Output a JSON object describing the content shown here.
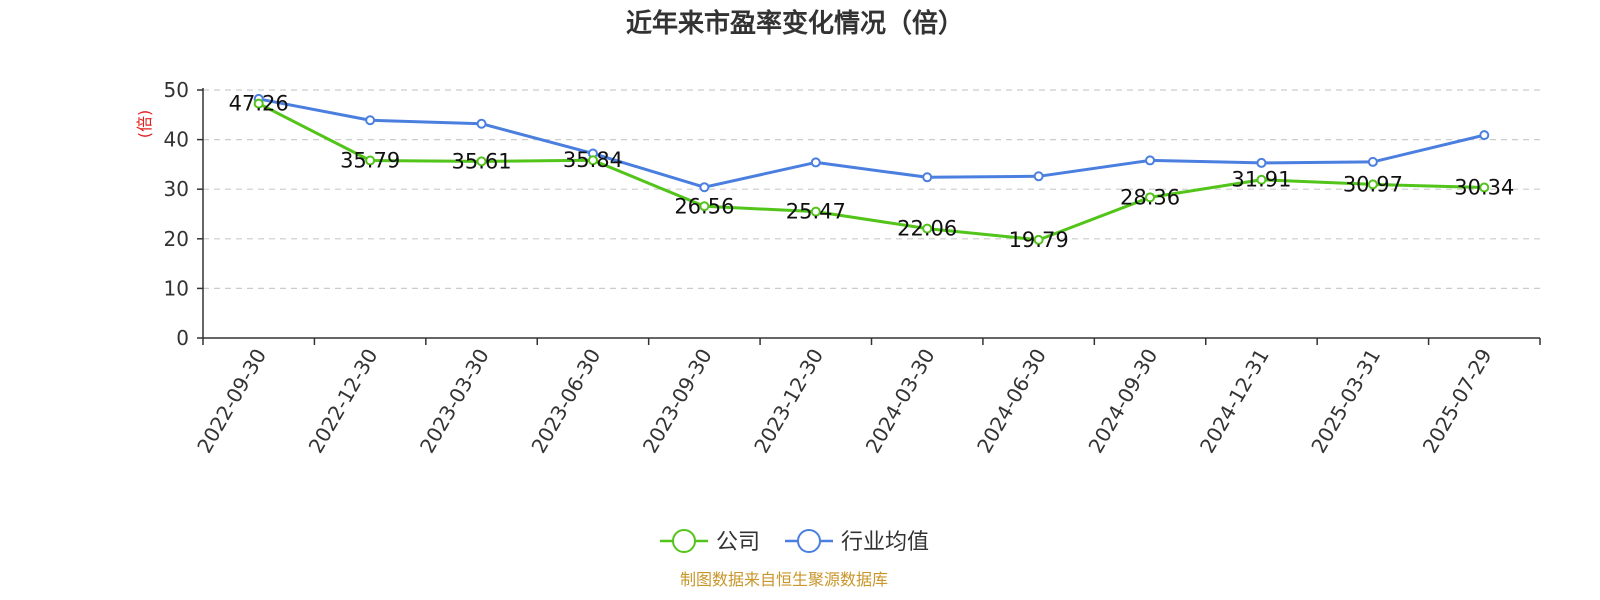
{
  "chart_data": {
    "type": "line",
    "title": "近年来市盈率变化情况（倍）",
    "ylabel": "(倍)",
    "ylim": [
      0,
      50
    ],
    "yticks": [
      0,
      10,
      20,
      30,
      40,
      50
    ],
    "grid": true,
    "legend_position": "bottom-center",
    "categories": [
      "2022-09-30",
      "2022-12-30",
      "2023-03-30",
      "2023-06-30",
      "2023-09-30",
      "2023-12-30",
      "2024-03-30",
      "2024-06-30",
      "2024-09-30",
      "2024-12-31",
      "2025-03-31",
      "2025-07-29"
    ],
    "series": [
      {
        "name": "公司",
        "color": "#52c41a",
        "values": [
          47.26,
          35.79,
          35.61,
          35.84,
          26.56,
          25.47,
          22.06,
          19.79,
          28.36,
          31.91,
          30.97,
          30.34
        ],
        "data_labels": [
          "47.26",
          "35.79",
          "35.61",
          "35.84",
          "26.56",
          "25.47",
          "22.06",
          "19.79",
          "28.36",
          "31.91",
          "30.97",
          "30.34"
        ]
      },
      {
        "name": "行业均值",
        "color": "#4a7fe0",
        "values": [
          48.2,
          43.9,
          43.2,
          37.2,
          30.4,
          35.4,
          32.4,
          32.6,
          35.8,
          35.3,
          35.5,
          40.9
        ]
      }
    ]
  },
  "source": "制图数据来自恒生聚源数据库",
  "colors": {
    "title": "#333333",
    "ylabel": "#e02020",
    "source": "#c8962a",
    "grid": "#cccccc",
    "axis": "#333333"
  }
}
